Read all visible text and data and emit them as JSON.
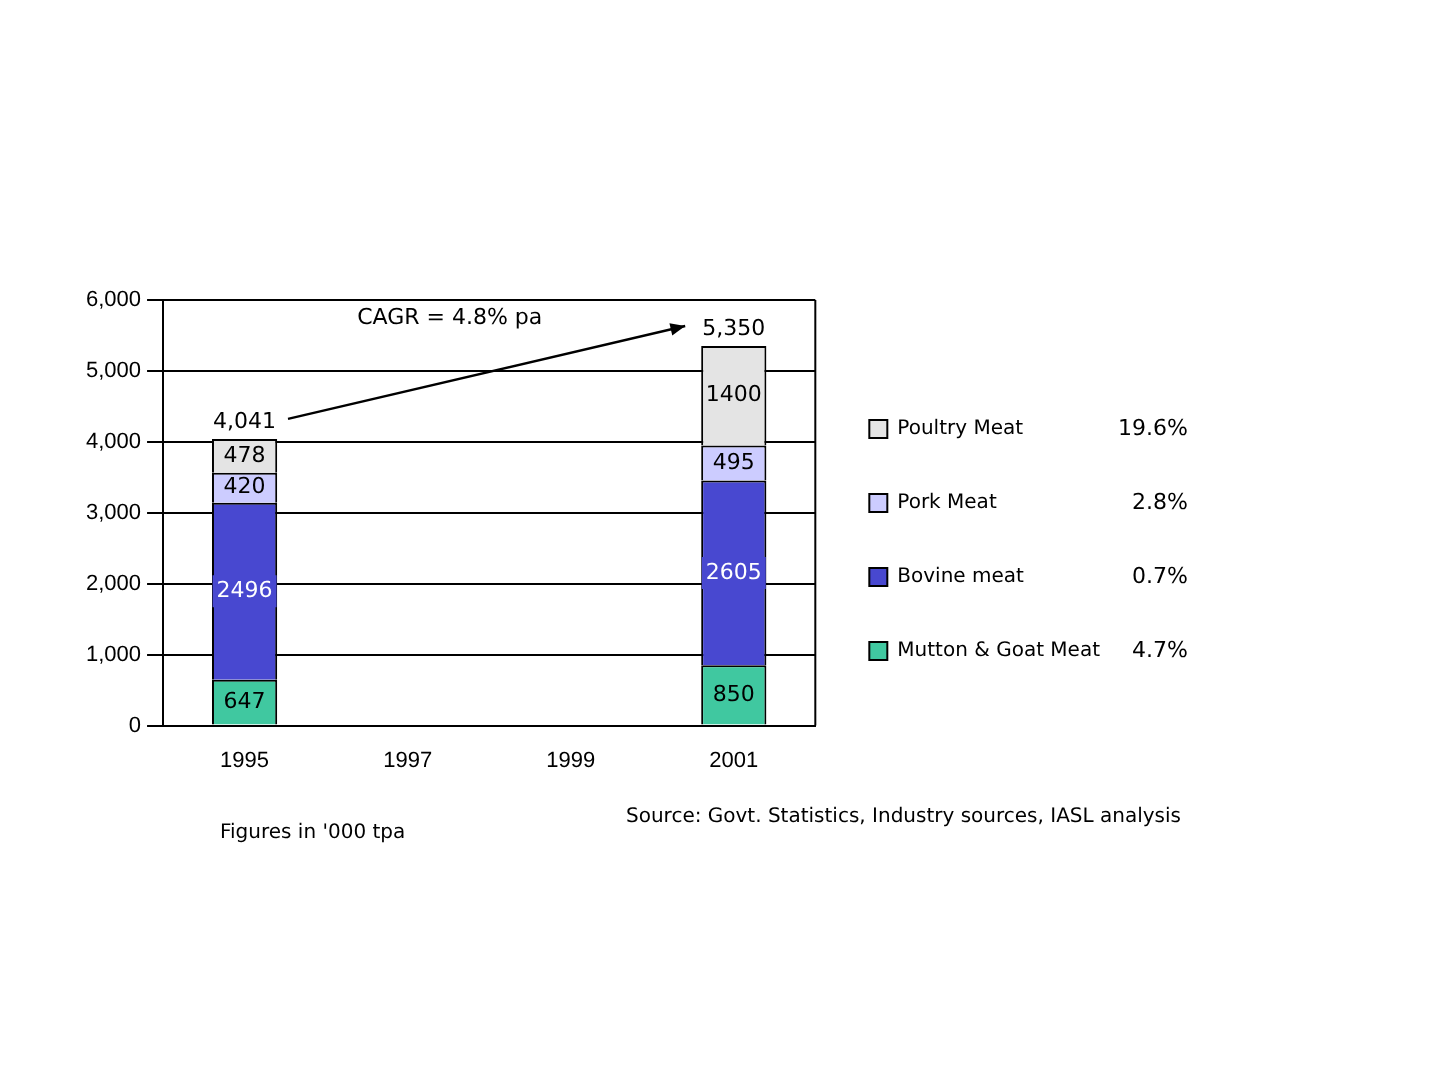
{
  "chart_data": {
    "type": "bar",
    "stacked": true,
    "categories": [
      "1995",
      "1997",
      "1999",
      "2001"
    ],
    "series": [
      {
        "name": "Mutton & Goat Meat",
        "color": "#40c8a0",
        "values": [
          647,
          null,
          null,
          850
        ]
      },
      {
        "name": "Bovine meat",
        "color": "#4848d0",
        "values": [
          2496,
          null,
          null,
          2605
        ]
      },
      {
        "name": "Pork Meat",
        "color": "#ccccff",
        "values": [
          420,
          null,
          null,
          495
        ]
      },
      {
        "name": "Poultry Meat",
        "color": "#e4e4e4",
        "values": [
          478,
          null,
          null,
          1400
        ]
      }
    ],
    "ylim": [
      0,
      6000
    ],
    "yticks": [
      0,
      {
        "value": 1000,
        "label": "1,000"
      },
      {
        "value": 2000,
        "label": "2,000"
      },
      {
        "value": 3000,
        "label": "3,000"
      },
      {
        "value": 4000,
        "label": "4,000"
      },
      {
        "value": 5000,
        "label": "5,000"
      },
      {
        "value": 6000,
        "label": "6,000"
      }
    ],
    "grid": "y",
    "legend": "right",
    "data_labels": true,
    "totals": [
      "4,041",
      null,
      null,
      "5,350"
    ],
    "annotations": [
      "CAGR = 4.8% pa",
      "4.7%",
      "0.7%",
      "2.8%",
      "19.6%",
      "Figures in '000 tpa",
      "Source: Govt. Statistics, Industry sources, IASL analysis"
    ]
  }
}
